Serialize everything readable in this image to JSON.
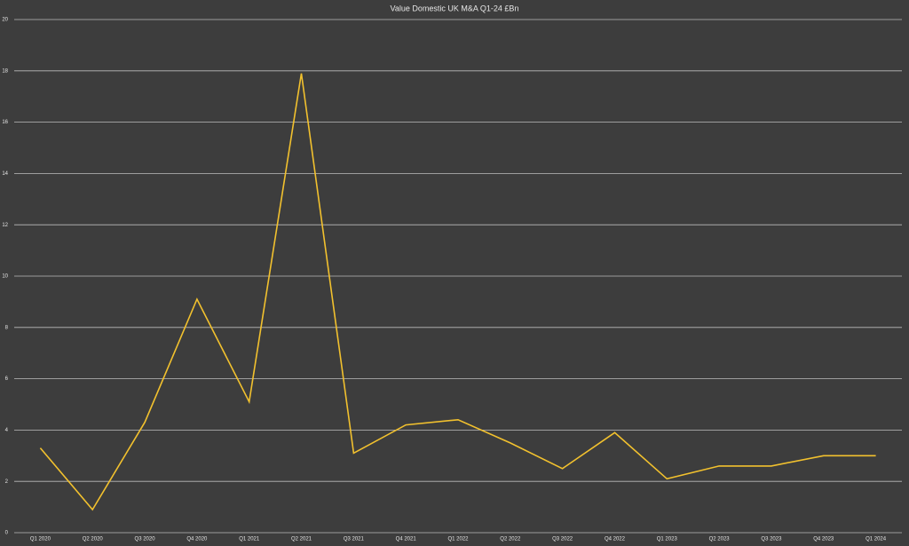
{
  "chart_data": {
    "type": "line",
    "title": "Value Domestic UK M&A Q1-24 £Bn",
    "categories": [
      "Q1 2020",
      "Q2 2020",
      "Q3 2020",
      "Q4 2020",
      "Q1 2021",
      "Q2 2021",
      "Q3 2021",
      "Q4 2021",
      "Q1 2022",
      "Q2 2022",
      "Q3 2022",
      "Q4 2022",
      "Q1 2023",
      "Q2 2023",
      "Q3 2023",
      "Q4 2023",
      "Q1 2024"
    ],
    "values": [
      3.3,
      0.9,
      4.3,
      9.1,
      5.1,
      17.9,
      3.1,
      4.2,
      4.4,
      3.5,
      2.5,
      3.9,
      2.1,
      2.6,
      2.6,
      3.0,
      3.0
    ],
    "color": "#f2c12e",
    "ylim": [
      0,
      20
    ],
    "yticks": [
      0,
      2,
      4,
      6,
      8,
      10,
      12,
      14,
      16,
      18,
      20
    ],
    "grid": true
  }
}
